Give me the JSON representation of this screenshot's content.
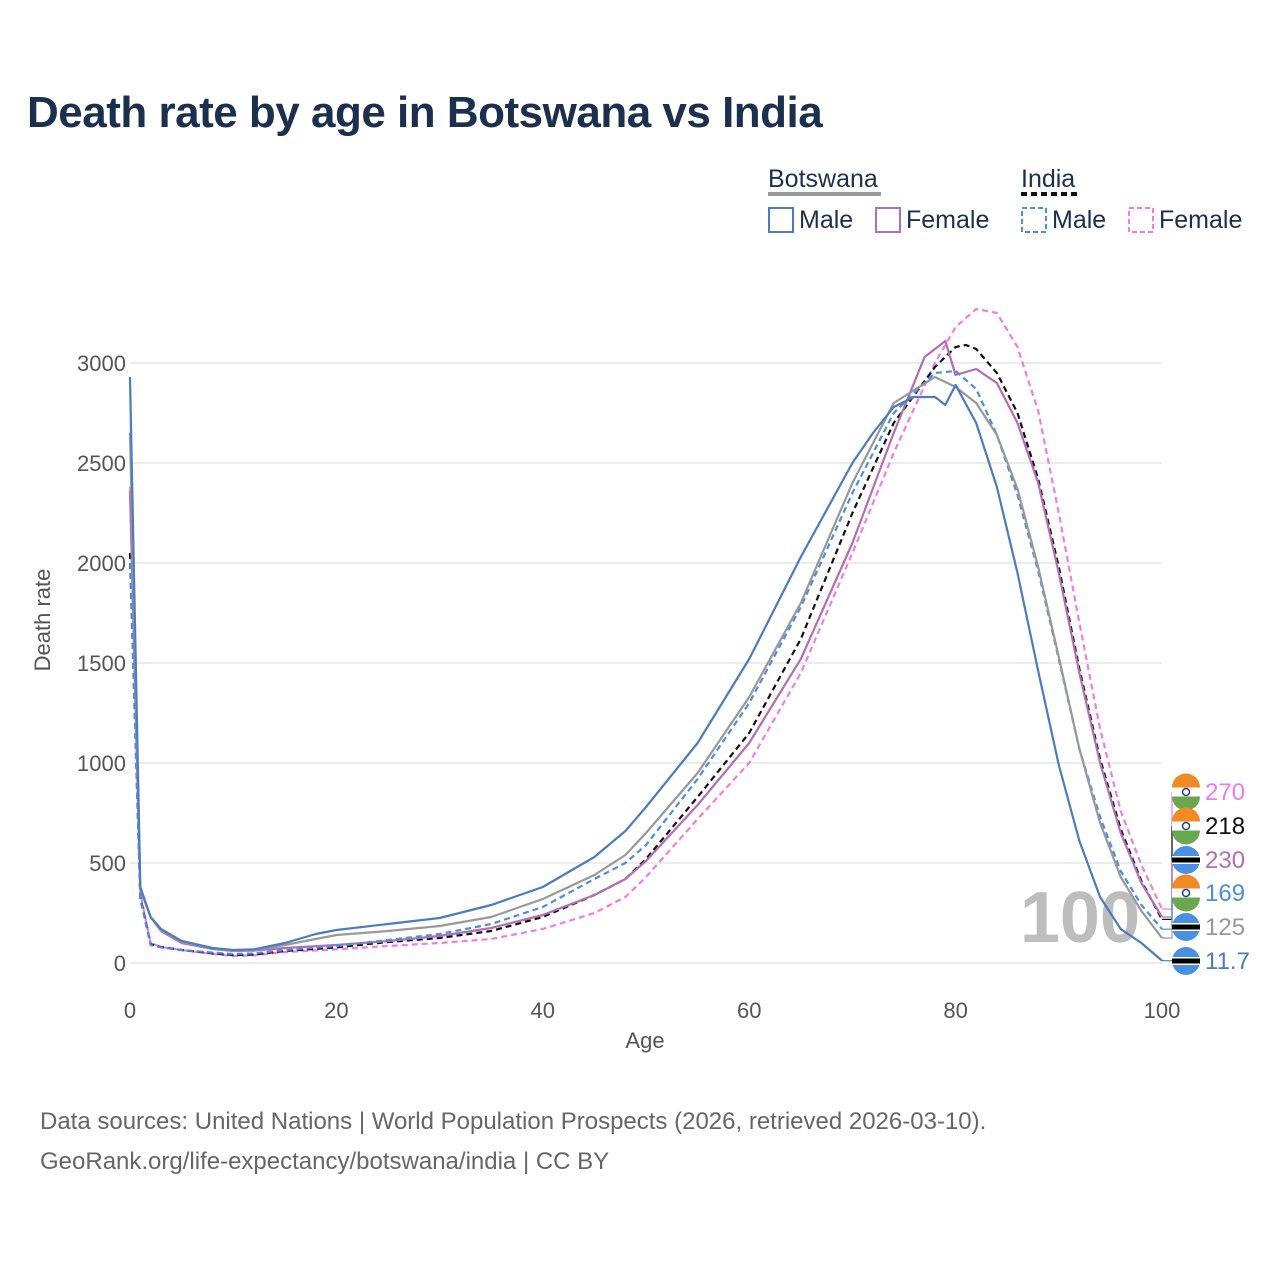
{
  "title": "Death rate by age in Botswana vs India",
  "footer": {
    "line1": "Data sources: United Nations | World Population Prospects (2026, retrieved 2026-03-10).",
    "line2": "GeoRank.org/life-expectancy/botswana/india | CC BY"
  },
  "legend": {
    "groups": [
      {
        "name": "Botswana",
        "color": "#999999",
        "dash": false,
        "items": [
          {
            "label": "Male",
            "color": "#4a7cc0"
          },
          {
            "label": "Female",
            "color": "#b56db5"
          }
        ]
      },
      {
        "name": "India",
        "color": "#111111",
        "dash": true,
        "items": [
          {
            "label": "Male",
            "color": "#4a8fe0"
          },
          {
            "label": "Female",
            "color": "#f47ae6"
          }
        ]
      }
    ]
  },
  "chart_data": {
    "type": "line",
    "title": "Death rate by age in Botswana vs India",
    "xlabel": "Age",
    "ylabel": "Death rate",
    "xlim": [
      0,
      100
    ],
    "ylim": [
      0,
      3000
    ],
    "x_ticks": [
      0,
      20,
      40,
      60,
      80,
      100
    ],
    "y_ticks": [
      0,
      500,
      1000,
      1500,
      2000,
      2500,
      3000
    ],
    "grid": true,
    "age_marker": "100",
    "series": [
      {
        "id": "india-female",
        "name": "India Female",
        "color": "#f47ae6",
        "dash": true,
        "end_label": "270",
        "flag": "india",
        "points": [
          [
            0,
            2380
          ],
          [
            1,
            350
          ],
          [
            2,
            100
          ],
          [
            3,
            80
          ],
          [
            5,
            65
          ],
          [
            8,
            45
          ],
          [
            10,
            35
          ],
          [
            12,
            38
          ],
          [
            15,
            55
          ],
          [
            20,
            68
          ],
          [
            25,
            85
          ],
          [
            30,
            100
          ],
          [
            35,
            120
          ],
          [
            40,
            170
          ],
          [
            45,
            250
          ],
          [
            48,
            330
          ],
          [
            50,
            430
          ],
          [
            55,
            720
          ],
          [
            60,
            1000
          ],
          [
            65,
            1450
          ],
          [
            70,
            2050
          ],
          [
            74,
            2550
          ],
          [
            78,
            3000
          ],
          [
            80,
            3180
          ],
          [
            82,
            3270
          ],
          [
            84,
            3250
          ],
          [
            86,
            3080
          ],
          [
            88,
            2760
          ],
          [
            90,
            2250
          ],
          [
            92,
            1700
          ],
          [
            94,
            1170
          ],
          [
            96,
            760
          ],
          [
            98,
            490
          ],
          [
            100,
            270
          ]
        ]
      },
      {
        "id": "india-total",
        "name": "India",
        "color": "#111111",
        "dash": true,
        "end_label": "218",
        "flag": "india",
        "points": [
          [
            0,
            2050
          ],
          [
            1,
            330
          ],
          [
            2,
            95
          ],
          [
            3,
            80
          ],
          [
            5,
            65
          ],
          [
            8,
            48
          ],
          [
            10,
            40
          ],
          [
            12,
            42
          ],
          [
            15,
            60
          ],
          [
            20,
            78
          ],
          [
            25,
            105
          ],
          [
            30,
            125
          ],
          [
            35,
            160
          ],
          [
            40,
            230
          ],
          [
            45,
            340
          ],
          [
            48,
            420
          ],
          [
            50,
            520
          ],
          [
            55,
            830
          ],
          [
            60,
            1150
          ],
          [
            65,
            1620
          ],
          [
            70,
            2250
          ],
          [
            74,
            2700
          ],
          [
            78,
            2980
          ],
          [
            80,
            3080
          ],
          [
            81,
            3090
          ],
          [
            82,
            3070
          ],
          [
            84,
            2950
          ],
          [
            86,
            2750
          ],
          [
            88,
            2420
          ],
          [
            90,
            1980
          ],
          [
            92,
            1470
          ],
          [
            94,
            1020
          ],
          [
            96,
            670
          ],
          [
            98,
            410
          ],
          [
            100,
            218
          ]
        ]
      },
      {
        "id": "botswana-female",
        "name": "Botswana Female",
        "color": "#b56db5",
        "dash": false,
        "end_label": "230",
        "flag": "botswana",
        "points": [
          [
            0,
            2360
          ],
          [
            1,
            370
          ],
          [
            2,
            230
          ],
          [
            3,
            160
          ],
          [
            5,
            100
          ],
          [
            8,
            70
          ],
          [
            10,
            60
          ],
          [
            12,
            62
          ],
          [
            15,
            75
          ],
          [
            20,
            90
          ],
          [
            25,
            110
          ],
          [
            30,
            135
          ],
          [
            35,
            175
          ],
          [
            40,
            240
          ],
          [
            45,
            340
          ],
          [
            48,
            420
          ],
          [
            50,
            510
          ],
          [
            55,
            790
          ],
          [
            60,
            1100
          ],
          [
            65,
            1520
          ],
          [
            70,
            2100
          ],
          [
            74,
            2650
          ],
          [
            77,
            3030
          ],
          [
            79,
            3110
          ],
          [
            80,
            2940
          ],
          [
            82,
            2970
          ],
          [
            84,
            2900
          ],
          [
            86,
            2700
          ],
          [
            88,
            2400
          ],
          [
            90,
            1950
          ],
          [
            92,
            1450
          ],
          [
            94,
            1000
          ],
          [
            96,
            650
          ],
          [
            98,
            400
          ],
          [
            100,
            230
          ]
        ]
      },
      {
        "id": "india-male",
        "name": "India Male",
        "color": "#4a8fe0",
        "dash": true,
        "end_label": "169",
        "flag": "india",
        "points": [
          [
            0,
            2000
          ],
          [
            1,
            320
          ],
          [
            2,
            90
          ],
          [
            3,
            78
          ],
          [
            5,
            65
          ],
          [
            8,
            52
          ],
          [
            10,
            45
          ],
          [
            12,
            48
          ],
          [
            15,
            65
          ],
          [
            20,
            85
          ],
          [
            25,
            115
          ],
          [
            30,
            145
          ],
          [
            35,
            195
          ],
          [
            40,
            280
          ],
          [
            45,
            420
          ],
          [
            48,
            500
          ],
          [
            50,
            590
          ],
          [
            55,
            920
          ],
          [
            60,
            1300
          ],
          [
            65,
            1780
          ],
          [
            70,
            2350
          ],
          [
            74,
            2750
          ],
          [
            78,
            2950
          ],
          [
            80,
            2960
          ],
          [
            82,
            2870
          ],
          [
            84,
            2640
          ],
          [
            86,
            2340
          ],
          [
            88,
            1960
          ],
          [
            90,
            1520
          ],
          [
            92,
            1070
          ],
          [
            94,
            730
          ],
          [
            96,
            460
          ],
          [
            98,
            290
          ],
          [
            100,
            169
          ]
        ]
      },
      {
        "id": "botswana-total",
        "name": "Botswana",
        "color": "#999999",
        "dash": false,
        "end_label": "125",
        "flag": "botswana",
        "points": [
          [
            0,
            2650
          ],
          [
            1,
            375
          ],
          [
            2,
            230
          ],
          [
            3,
            165
          ],
          [
            5,
            105
          ],
          [
            8,
            72
          ],
          [
            10,
            62
          ],
          [
            12,
            65
          ],
          [
            15,
            90
          ],
          [
            20,
            140
          ],
          [
            25,
            160
          ],
          [
            30,
            185
          ],
          [
            35,
            230
          ],
          [
            40,
            320
          ],
          [
            45,
            440
          ],
          [
            48,
            540
          ],
          [
            50,
            650
          ],
          [
            55,
            950
          ],
          [
            60,
            1330
          ],
          [
            65,
            1800
          ],
          [
            70,
            2400
          ],
          [
            74,
            2800
          ],
          [
            78,
            2930
          ],
          [
            80,
            2880
          ],
          [
            82,
            2800
          ],
          [
            84,
            2640
          ],
          [
            86,
            2370
          ],
          [
            88,
            1980
          ],
          [
            90,
            1530
          ],
          [
            92,
            1070
          ],
          [
            94,
            700
          ],
          [
            96,
            430
          ],
          [
            98,
            260
          ],
          [
            100,
            125
          ]
        ]
      },
      {
        "id": "botswana-male",
        "name": "Botswana Male",
        "color": "#4a7cc0",
        "dash": false,
        "end_label": "11.7",
        "flag": "botswana",
        "points": [
          [
            0,
            2930
          ],
          [
            1,
            380
          ],
          [
            2,
            230
          ],
          [
            3,
            170
          ],
          [
            5,
            110
          ],
          [
            8,
            75
          ],
          [
            10,
            65
          ],
          [
            12,
            68
          ],
          [
            15,
            100
          ],
          [
            18,
            145
          ],
          [
            20,
            165
          ],
          [
            25,
            195
          ],
          [
            30,
            225
          ],
          [
            35,
            290
          ],
          [
            40,
            380
          ],
          [
            45,
            530
          ],
          [
            48,
            660
          ],
          [
            50,
            780
          ],
          [
            55,
            1100
          ],
          [
            60,
            1520
          ],
          [
            65,
            2030
          ],
          [
            70,
            2500
          ],
          [
            72,
            2650
          ],
          [
            74,
            2780
          ],
          [
            76,
            2830
          ],
          [
            78,
            2830
          ],
          [
            79,
            2790
          ],
          [
            80,
            2890
          ],
          [
            82,
            2700
          ],
          [
            84,
            2380
          ],
          [
            86,
            1950
          ],
          [
            88,
            1460
          ],
          [
            90,
            990
          ],
          [
            92,
            610
          ],
          [
            94,
            330
          ],
          [
            96,
            170
          ],
          [
            98,
            100
          ],
          [
            100,
            11.7
          ]
        ]
      }
    ]
  }
}
